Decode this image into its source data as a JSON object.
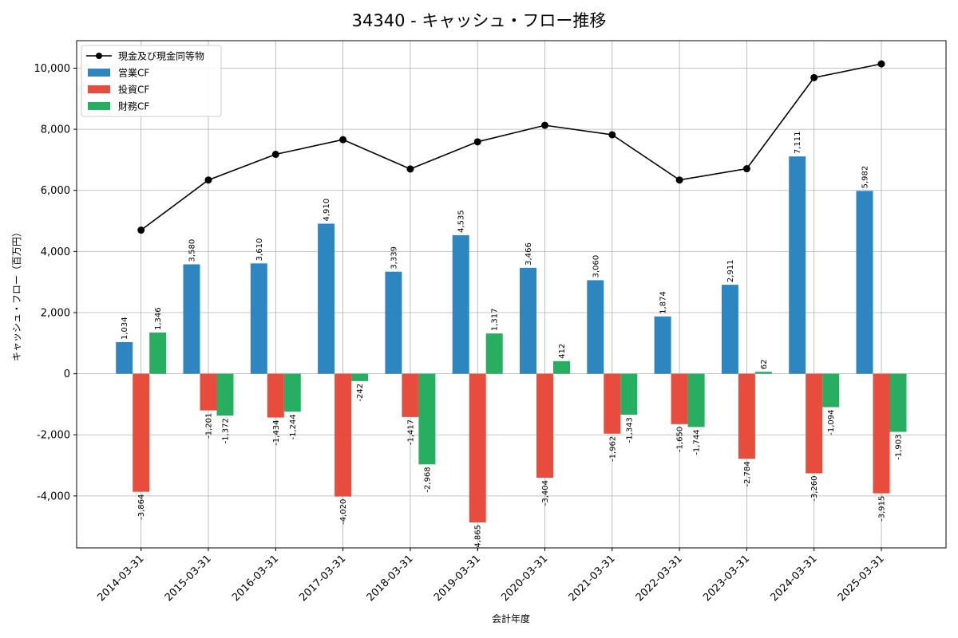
{
  "chart_data": {
    "type": "bar",
    "title": "34340 - キャッシュ・フロー推移",
    "xlabel": "会計年度",
    "ylabel": "キャッシュ・フロー（百万円）",
    "ylim": [
      -5700,
      10900
    ],
    "yticks": [
      -4000,
      -2000,
      0,
      2000,
      4000,
      6000,
      8000,
      10000
    ],
    "ytick_labels": [
      "-4,000",
      "-2,000",
      "0",
      "2,000",
      "4,000",
      "6,000",
      "8,000",
      "10,000"
    ],
    "grid": true,
    "legend_position": "top-left",
    "categories": [
      "2014-03-31",
      "2015-03-31",
      "2016-03-31",
      "2017-03-31",
      "2018-03-31",
      "2019-03-31",
      "2020-03-31",
      "2021-03-31",
      "2022-03-31",
      "2023-03-31",
      "2024-03-31",
      "2025-03-31"
    ],
    "series": [
      {
        "name": "営業CF",
        "kind": "bar",
        "color": "#2e86c1",
        "values": [
          1034,
          3580,
          3610,
          4910,
          3339,
          4535,
          3466,
          3060,
          1874,
          2911,
          7111,
          5982
        ],
        "labels": [
          "1,034",
          "3,580",
          "3,610",
          "4,910",
          "3,339",
          "4,535",
          "3,466",
          "3,060",
          "1,874",
          "2,911",
          "7,111",
          "5,982"
        ]
      },
      {
        "name": "投資CF",
        "kind": "bar",
        "color": "#e74c3c",
        "values": [
          -3864,
          -1201,
          -1434,
          -4020,
          -1417,
          -4865,
          -3404,
          -1962,
          -1650,
          -2784,
          -3260,
          -3915
        ],
        "labels": [
          "-3,864",
          "-1,201",
          "-1,434",
          "-4,020",
          "-1,417",
          "-4,865",
          "-3,404",
          "-1,962",
          "-1,650",
          "-2,784",
          "-3,260",
          "-3,915"
        ]
      },
      {
        "name": "財務CF",
        "kind": "bar",
        "color": "#27ae60",
        "values": [
          1346,
          -1372,
          -1244,
          -242,
          -2968,
          1317,
          412,
          -1343,
          -1744,
          62,
          -1094,
          -1903
        ],
        "labels": [
          "1,346",
          "-1,372",
          "-1,244",
          "-242",
          "-2,968",
          "1,317",
          "412",
          "-1,343",
          "-1,744",
          "62",
          "-1,094",
          "-1,903"
        ]
      },
      {
        "name": "現金及び現金同等物",
        "kind": "line",
        "color": "#000000",
        "values": [
          4700,
          6340,
          7180,
          7660,
          6700,
          7590,
          8130,
          7820,
          6340,
          6710,
          9690,
          10140
        ]
      }
    ]
  }
}
